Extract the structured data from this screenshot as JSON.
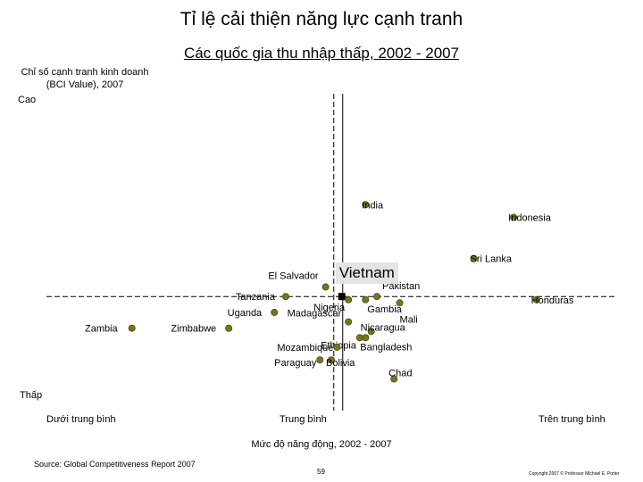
{
  "title": "Tỉ lệ cải thiện năng lực cạnh tranh",
  "subtitle": "Các quốc gia thu nhập thấp, 2002 - 2007",
  "y_axis": {
    "label_line1": "Chỉ số cạnh tranh kinh doanh",
    "label_line2": "(BCI Value), 2007",
    "high": "Cao",
    "low": "Thấp"
  },
  "x_axis": {
    "below": "Dưới trung bình",
    "average": "Trung bình",
    "above": "Trên trung bình",
    "label": "Mức độ năng động, 2002 - 2007"
  },
  "source": "Source: Global Competitiveness Report 2007",
  "page_number": "59",
  "copyright": "Copyright 2007 © Professor Michael E. Porter",
  "colors": {
    "point": "#7a7420",
    "point_edge": "#4c4810",
    "highlight": "#000000",
    "axis": "#000000",
    "highlight_box": "#e4e4e4"
  },
  "chart_data": {
    "type": "scatter",
    "title": "Tỉ lệ cải thiện năng lực cạnh tranh",
    "subtitle": "Các quốc gia thu nhập thấp, 2002 - 2007",
    "xlabel": "Mức độ năng động, 2002 - 2007",
    "ylabel": "Chỉ số cạnh tranh kinh doanh (BCI Value), 2007",
    "x_axis_categories": [
      "Dưới trung bình",
      "Trung bình",
      "Trên trung bình"
    ],
    "y_axis_categories": [
      "Thấp",
      "Cao"
    ],
    "xlim": [
      0,
      100
    ],
    "ylim": [
      0,
      100
    ],
    "x_average": 52,
    "y_average": 36,
    "highlight": "Vietnam",
    "points": [
      {
        "name": "India",
        "x": 56,
        "y": 65
      },
      {
        "name": "Indonesia",
        "x": 82,
        "y": 61
      },
      {
        "name": "Sri Lanka",
        "x": 75,
        "y": 48
      },
      {
        "name": "El Salvador",
        "x": 49,
        "y": 39
      },
      {
        "name": "Vietnam",
        "x": 52,
        "y": 36
      },
      {
        "name": "Pakistan",
        "x": 58,
        "y": 36
      },
      {
        "name": "Tanzania",
        "x": 42,
        "y": 36
      },
      {
        "name": "Nigeria",
        "x": 53,
        "y": 35
      },
      {
        "name": "Gambia",
        "x": 56,
        "y": 35
      },
      {
        "name": "Mali",
        "x": 62,
        "y": 34
      },
      {
        "name": "Honduras",
        "x": 86,
        "y": 35
      },
      {
        "name": "Uganda",
        "x": 40,
        "y": 31
      },
      {
        "name": "Madagascar",
        "x": 53,
        "y": 28
      },
      {
        "name": "Zambia",
        "x": 15,
        "y": 26
      },
      {
        "name": "Zimbabwe",
        "x": 32,
        "y": 26
      },
      {
        "name": "Ethiopia",
        "x": 55,
        "y": 23
      },
      {
        "name": "Nicaragua",
        "x": 57,
        "y": 25
      },
      {
        "name": "Bangladesh",
        "x": 56,
        "y": 23
      },
      {
        "name": "Mozambique",
        "x": 51,
        "y": 20
      },
      {
        "name": "Paraguay",
        "x": 48,
        "y": 16
      },
      {
        "name": "Bolivia",
        "x": 50,
        "y": 16
      },
      {
        "name": "Chad",
        "x": 61,
        "y": 10
      }
    ]
  }
}
